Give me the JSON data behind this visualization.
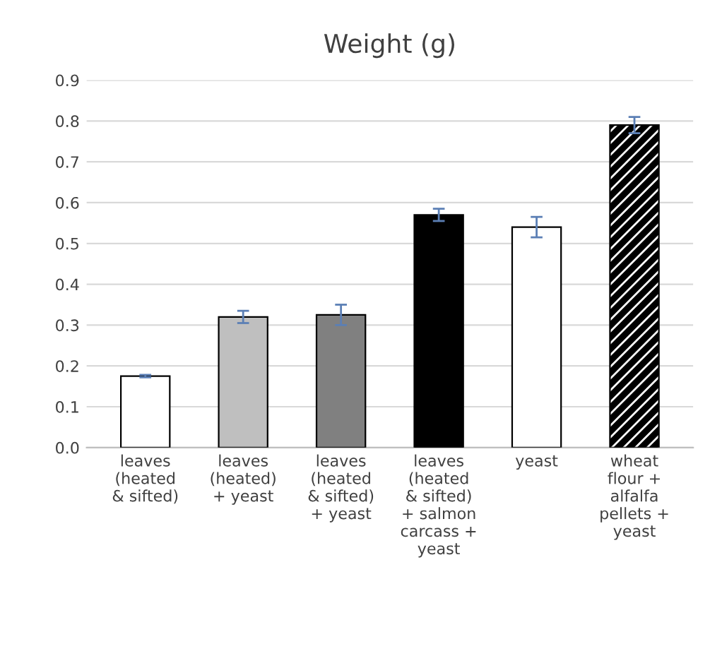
{
  "chart_data": {
    "type": "bar",
    "title": "Weight (g)",
    "categories": [
      "leaves\n(heated\n& sifted)",
      "leaves\n(heated)\n+ yeast",
      "leaves\n(heated\n& sifted)\n+ yeast",
      "leaves\n(heated\n& sifted)\n+ salmon\ncarcass +\nyeast",
      "yeast",
      "wheat\nflour +\nalfalfa\npellets +\nyeast"
    ],
    "values": [
      0.175,
      0.32,
      0.325,
      0.57,
      0.54,
      0.79
    ],
    "errors": [
      0.003,
      0.015,
      0.025,
      0.015,
      0.025,
      0.02
    ],
    "colors": [
      "#ffffff",
      "#bfbfbf",
      "#808080",
      "#000000",
      "#ffffff",
      "#000000"
    ],
    "ylim": [
      0,
      0.9
    ],
    "yticks": [
      {
        "value": 0,
        "label": "0.0"
      },
      0.1,
      0.2,
      0.3,
      0.4,
      0.5,
      0.6,
      0.7,
      0.8,
      0.9
    ],
    "grid": "y"
  }
}
